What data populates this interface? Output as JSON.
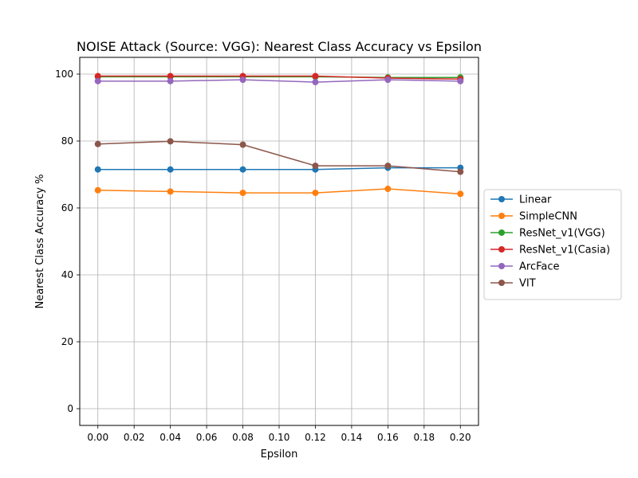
{
  "chart_data": {
    "type": "line",
    "title": "NOISE Attack (Source: VGG): Nearest Class Accuracy vs Epsilon",
    "xlabel": "Epsilon",
    "ylabel": "Nearest Class Accuracy %",
    "xlim": [
      -0.01,
      0.21
    ],
    "ylim": [
      -5,
      105
    ],
    "grid": true,
    "legend_position": "right, outside plot",
    "x_ticks": [
      0.0,
      0.02,
      0.04,
      0.06,
      0.08,
      0.1,
      0.12,
      0.14,
      0.16,
      0.18,
      0.2
    ],
    "x_tick_labels": [
      "0.00",
      "0.02",
      "0.04",
      "0.06",
      "0.08",
      "0.10",
      "0.12",
      "0.14",
      "0.16",
      "0.18",
      "0.20"
    ],
    "y_ticks": [
      0,
      20,
      40,
      60,
      80,
      100
    ],
    "y_tick_labels": [
      "0",
      "20",
      "40",
      "60",
      "80",
      "100"
    ],
    "x": [
      0.0,
      0.04,
      0.08,
      0.12,
      0.16,
      0.2
    ],
    "series": [
      {
        "name": "Linear",
        "color": "#1f77b4",
        "values": [
          71.5,
          71.5,
          71.5,
          71.5,
          72.0,
          72.0
        ]
      },
      {
        "name": "SimpleCNN",
        "color": "#ff7f0e",
        "values": [
          65.3,
          64.9,
          64.5,
          64.5,
          65.7,
          64.2
        ]
      },
      {
        "name": "ResNet_v1(VGG)",
        "color": "#2ca02c",
        "values": [
          99.2,
          99.2,
          99.2,
          99.2,
          99.0,
          99.0
        ]
      },
      {
        "name": "ResNet_v1(Casia)",
        "color": "#d62728",
        "values": [
          99.4,
          99.4,
          99.4,
          99.4,
          98.8,
          98.5
        ]
      },
      {
        "name": "ArcFace",
        "color": "#9467bd",
        "values": [
          97.9,
          97.9,
          98.3,
          97.6,
          98.3,
          97.9
        ]
      },
      {
        "name": "VIT",
        "color": "#8c564b",
        "values": [
          79.1,
          79.9,
          78.9,
          72.6,
          72.6,
          70.8
        ]
      }
    ]
  }
}
